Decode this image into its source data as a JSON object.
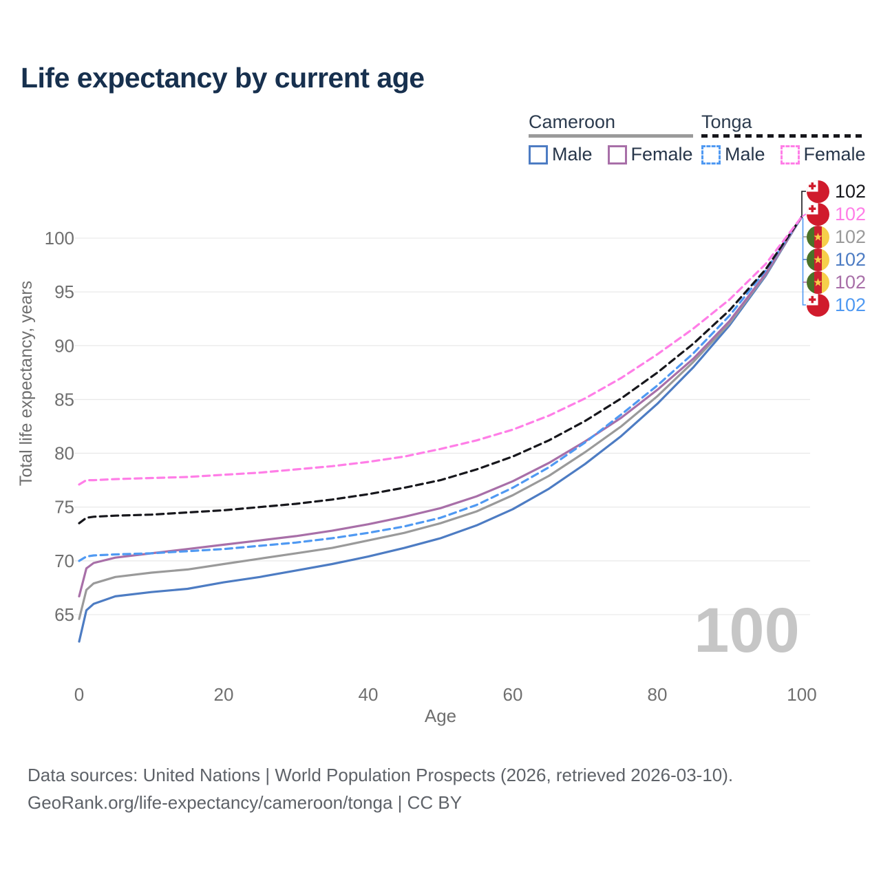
{
  "title": "Life expectancy by current age",
  "watermark": "100",
  "footer": {
    "line1": "Data sources: United Nations | World Population Prospects (2026, retrieved 2026-03-10).",
    "line2": "GeoRank.org/life-expectancy/cameroon/tonga | CC BY"
  },
  "legend": {
    "groups": [
      {
        "label": "Cameroon",
        "line_style": "solid",
        "underline_color": "#9a9a9a",
        "items": [
          {
            "label": "Male",
            "color": "#4d7cc3",
            "dashed": false
          },
          {
            "label": "Female",
            "color": "#a86fa8",
            "dashed": false
          }
        ]
      },
      {
        "label": "Tonga",
        "line_style": "dashed",
        "underline_color": "#17171c",
        "items": [
          {
            "label": "Male",
            "color": "#4f99f2",
            "dashed": true
          },
          {
            "label": "Female",
            "color": "#ff7ee7",
            "dashed": true
          }
        ]
      }
    ]
  },
  "chart_data": {
    "type": "line",
    "title": "Life expectancy by current age",
    "xlabel": "Age",
    "ylabel": "Total life expectancy, years",
    "xlim": [
      0,
      100
    ],
    "ylim": [
      62,
      103
    ],
    "xticks": [
      0,
      20,
      40,
      60,
      80,
      100
    ],
    "yticks": [
      65,
      70,
      75,
      80,
      85,
      90,
      95,
      100
    ],
    "grid": "horizontal",
    "legend_position": "top-right",
    "ages": [
      0,
      1,
      2,
      5,
      10,
      15,
      20,
      25,
      30,
      35,
      40,
      45,
      50,
      55,
      60,
      65,
      70,
      75,
      80,
      85,
      90,
      95,
      100
    ],
    "series": [
      {
        "name": "Cameroon Male",
        "country": "cameroon",
        "sex": "male",
        "color": "#4d7cc3",
        "dashed": false,
        "values": [
          62.5,
          65.4,
          66.0,
          66.7,
          67.1,
          67.4,
          68.0,
          68.5,
          69.1,
          69.7,
          70.4,
          71.2,
          72.1,
          73.3,
          74.8,
          76.7,
          79.0,
          81.6,
          84.6,
          88.0,
          91.9,
          96.5,
          102
        ]
      },
      {
        "name": "Cameroon Both sexes",
        "country": "cameroon",
        "sex": "both",
        "color": "#9a9a9a",
        "dashed": false,
        "values": [
          64.6,
          67.3,
          67.9,
          68.5,
          68.9,
          69.2,
          69.7,
          70.2,
          70.7,
          71.2,
          71.9,
          72.6,
          73.5,
          74.6,
          76.1,
          77.9,
          80.1,
          82.5,
          85.3,
          88.5,
          92.1,
          96.6,
          102
        ]
      },
      {
        "name": "Cameroon Female",
        "country": "cameroon",
        "sex": "female",
        "color": "#a86fa8",
        "dashed": false,
        "values": [
          66.7,
          69.3,
          69.8,
          70.3,
          70.7,
          71.1,
          71.5,
          71.9,
          72.3,
          72.8,
          73.4,
          74.1,
          74.9,
          76.0,
          77.4,
          79.1,
          81.1,
          83.3,
          85.9,
          88.8,
          92.3,
          96.7,
          102
        ]
      },
      {
        "name": "Tonga Male",
        "country": "tonga",
        "sex": "male",
        "color": "#4f99f2",
        "dashed": true,
        "values": [
          70.0,
          70.4,
          70.5,
          70.6,
          70.7,
          70.9,
          71.1,
          71.4,
          71.7,
          72.1,
          72.6,
          73.2,
          74.0,
          75.2,
          76.8,
          78.7,
          81.0,
          83.6,
          86.3,
          89.3,
          92.8,
          97.0,
          102
        ]
      },
      {
        "name": "Tonga Both sexes",
        "country": "tonga",
        "sex": "both",
        "color": "#17171c",
        "dashed": true,
        "values": [
          73.5,
          74.0,
          74.1,
          74.2,
          74.3,
          74.5,
          74.7,
          75.0,
          75.3,
          75.7,
          76.2,
          76.8,
          77.5,
          78.5,
          79.7,
          81.2,
          83.0,
          85.1,
          87.5,
          90.2,
          93.3,
          97.1,
          102
        ]
      },
      {
        "name": "Tonga Female",
        "country": "tonga",
        "sex": "female",
        "color": "#ff7ee7",
        "dashed": true,
        "values": [
          77.1,
          77.5,
          77.5,
          77.6,
          77.7,
          77.8,
          78.0,
          78.2,
          78.5,
          78.8,
          79.2,
          79.7,
          80.4,
          81.2,
          82.2,
          83.5,
          85.1,
          87.0,
          89.2,
          91.6,
          94.3,
          97.6,
          102
        ]
      }
    ],
    "end_labels": [
      {
        "series": "Tonga Both sexes",
        "country": "tonga",
        "value": "102",
        "color": "#17171c"
      },
      {
        "series": "Tonga Female",
        "country": "tonga",
        "value": "102",
        "color": "#ff7ee7"
      },
      {
        "series": "Cameroon Both sexes",
        "country": "cameroon",
        "value": "102",
        "color": "#9a9a9a"
      },
      {
        "series": "Cameroon Male",
        "country": "cameroon",
        "value": "102",
        "color": "#4d7cc3"
      },
      {
        "series": "Cameroon Female",
        "country": "cameroon",
        "value": "102",
        "color": "#a86fa8"
      },
      {
        "series": "Tonga Male",
        "country": "tonga",
        "value": "102",
        "color": "#4f99f2"
      }
    ]
  },
  "colors": {
    "title": "#17304e",
    "axis_text": "#6f6f6f",
    "gridline": "#e9e9e9",
    "watermark": "#c6c6c6",
    "footer": "#5e6268"
  }
}
